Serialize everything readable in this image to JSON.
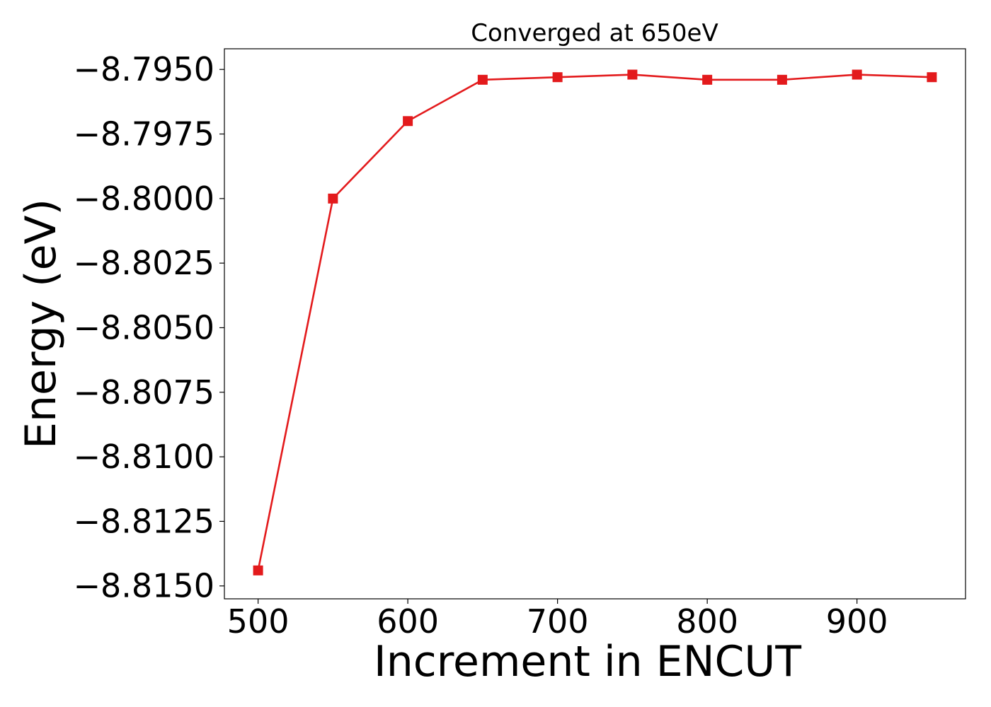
{
  "chart_data": {
    "type": "line",
    "title": "Converged at 650eV",
    "xlabel": "Increment in ENCUT",
    "ylabel": "Energy (eV)",
    "xlim": [
      477.5,
      972.5
    ],
    "ylim": [
      -8.8155,
      -8.7942
    ],
    "x_ticks": [
      500,
      600,
      700,
      800,
      900
    ],
    "x_tick_labels": [
      "500",
      "600",
      "700",
      "800",
      "900"
    ],
    "y_ticks": [
      -8.795,
      -8.7975,
      -8.8,
      -8.8025,
      -8.805,
      -8.8075,
      -8.81,
      -8.8125,
      -8.815
    ],
    "y_tick_labels": [
      "−8.7950",
      "−8.7975",
      "−8.8000",
      "−8.8025",
      "−8.8050",
      "−8.8075",
      "−8.8100",
      "−8.8125",
      "−8.8150"
    ],
    "grid": false,
    "series": [
      {
        "color": "#e31a1c",
        "marker": "square",
        "x": [
          500,
          550,
          600,
          650,
          700,
          750,
          800,
          850,
          900,
          950
        ],
        "y": [
          -8.8144,
          -8.8,
          -8.797,
          -8.7954,
          -8.7953,
          -8.7952,
          -8.7954,
          -8.7954,
          -8.7952,
          -8.7953
        ]
      }
    ]
  }
}
